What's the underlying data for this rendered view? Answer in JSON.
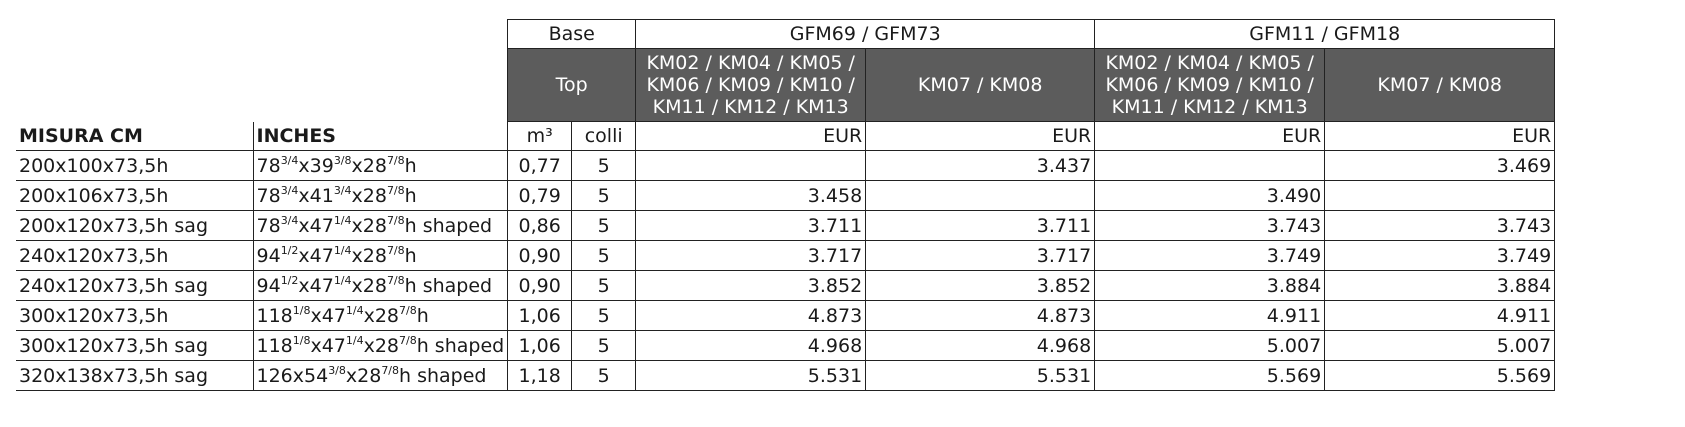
{
  "header": {
    "base": "Base",
    "top": "Top",
    "group1": "GFM69 / GFM73",
    "group2": "GFM11 / GFM18",
    "km_a": "KM02 / KM04 / KM05 / KM06 / KM09 / KM10 / KM11 / KM12 / KM13",
    "km_b": "KM07 / KM08",
    "col_misura": "MISURA CM",
    "col_inches": "INCHES",
    "col_m3": "m³",
    "col_colli": "colli",
    "col_eur": "EUR"
  },
  "rows": [
    {
      "misura": "200x100x73,5h",
      "inches": [
        "78",
        "3/4",
        "x39",
        "3/8",
        "x28",
        "7/8",
        "h"
      ],
      "m3": "0,77",
      "colli": "5",
      "p1": "",
      "p2": "3.437",
      "p3": "",
      "p4": "3.469"
    },
    {
      "misura": "200x106x73,5h",
      "inches": [
        "78",
        "3/4",
        "x41",
        "3/4",
        "x28",
        "7/8",
        "h"
      ],
      "m3": "0,79",
      "colli": "5",
      "p1": "3.458",
      "p2": "",
      "p3": "3.490",
      "p4": ""
    },
    {
      "misura": "200x120x73,5h sag",
      "inches": [
        "78",
        "3/4",
        "x47",
        "1/4",
        "x28",
        "7/8",
        "h shaped"
      ],
      "m3": "0,86",
      "colli": "5",
      "p1": "3.711",
      "p2": "3.711",
      "p3": "3.743",
      "p4": "3.743"
    },
    {
      "misura": "240x120x73,5h",
      "inches": [
        "94",
        "1/2",
        "x47",
        "1/4",
        "x28",
        "7/8",
        "h"
      ],
      "m3": "0,90",
      "colli": "5",
      "p1": "3.717",
      "p2": "3.717",
      "p3": "3.749",
      "p4": "3.749"
    },
    {
      "misura": "240x120x73,5h sag",
      "inches": [
        "94",
        "1/2",
        "x47",
        "1/4",
        "x28",
        "7/8",
        "h shaped"
      ],
      "m3": "0,90",
      "colli": "5",
      "p1": "3.852",
      "p2": "3.852",
      "p3": "3.884",
      "p4": "3.884"
    },
    {
      "misura": "300x120x73,5h",
      "inches": [
        "118",
        "1/8",
        "x47",
        "1/4",
        "x28",
        "7/8",
        "h"
      ],
      "m3": "1,06",
      "colli": "5",
      "p1": "4.873",
      "p2": "4.873",
      "p3": "4.911",
      "p4": "4.911"
    },
    {
      "misura": "300x120x73,5h sag",
      "inches": [
        "118",
        "1/8",
        "x47",
        "1/4",
        "x28",
        "7/8",
        "h shaped"
      ],
      "m3": "1,06",
      "colli": "5",
      "p1": "4.968",
      "p2": "4.968",
      "p3": "5.007",
      "p4": "5.007"
    },
    {
      "misura": "320x138x73,5h sag",
      "inches": [
        "126x54",
        "3/8",
        "x28",
        "7/8",
        "h shaped"
      ],
      "m3": "1,18",
      "colli": "5",
      "p1": "5.531",
      "p2": "5.531",
      "p3": "5.569",
      "p4": "5.569"
    }
  ]
}
